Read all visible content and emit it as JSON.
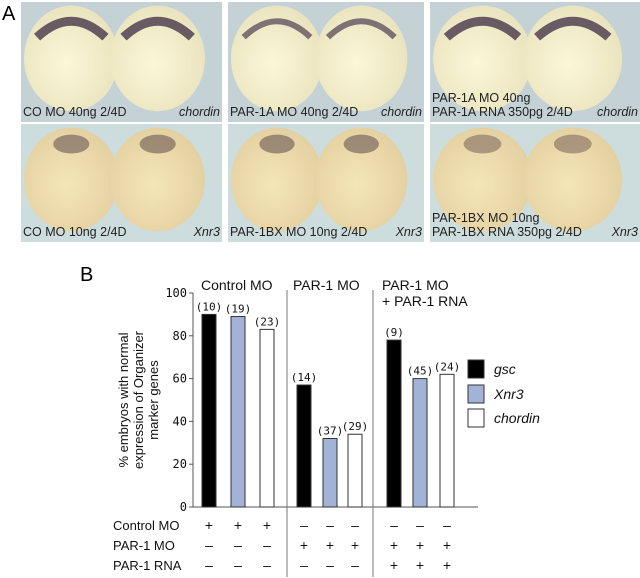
{
  "panel_a": {
    "letter": "A",
    "panels": [
      {
        "label_lines": [
          "CO MO 40ng 2/4D"
        ],
        "marker": "chordin"
      },
      {
        "label_lines": [
          "PAR-1A MO 40ng 2/4D"
        ],
        "marker": "chordin"
      },
      {
        "label_lines": [
          "PAR-1A MO 40ng",
          "PAR-1A RNA 350pg 2/4D"
        ],
        "marker": "chordin"
      },
      {
        "label_lines": [
          "CO MO 10ng 2/4D"
        ],
        "marker": "Xnr3"
      },
      {
        "label_lines": [
          "PAR-1BX MO 10ng 2/4D"
        ],
        "marker": "Xnr3"
      },
      {
        "label_lines": [
          "PAR-1BX MO 10ng",
          "PAR-1BX RNA 350pg 2/4D"
        ],
        "marker": "Xnr3"
      }
    ]
  },
  "panel_b": {
    "letter": "B"
  },
  "chart_data": {
    "type": "bar",
    "ylabel": "% embryos with normal expression of Organizer marker genes",
    "ylabel_lines": [
      "% embryos with normal",
      "expression of Organizer",
      "marker genes"
    ],
    "ylim": [
      0,
      100
    ],
    "yticks": [
      0,
      20,
      40,
      60,
      80,
      100
    ],
    "groups": [
      "Control MO",
      "PAR-1 MO",
      "PAR-1 MO + PAR-1 RNA"
    ],
    "group_label_lines": [
      [
        "Control MO"
      ],
      [
        "PAR-1 MO"
      ],
      [
        "PAR-1 MO",
        "+ PAR-1 RNA"
      ]
    ],
    "series": [
      {
        "name": "gsc",
        "color": "#000000",
        "values": [
          90,
          57,
          78
        ],
        "n": [
          "(10)",
          "(14)",
          "(9)"
        ]
      },
      {
        "name": "Xnr3",
        "color": "#a3b3d8",
        "values": [
          89,
          32,
          60
        ],
        "n": [
          "(19)",
          "(37)",
          "(45)"
        ]
      },
      {
        "name": "chordin",
        "color": "#ffffff",
        "values": [
          83,
          34,
          62
        ],
        "n": [
          "(23)",
          "(29)",
          "(24)"
        ]
      }
    ],
    "legend_position": "right",
    "treatment_rows": [
      {
        "label": "Control MO",
        "signs": [
          "+",
          "+",
          "+",
          "–",
          "–",
          "–",
          "–",
          "–",
          "–"
        ]
      },
      {
        "label": "PAR-1 MO",
        "signs": [
          "–",
          "–",
          "–",
          "+",
          "+",
          "+",
          "+",
          "+",
          "+"
        ]
      },
      {
        "label": "PAR-1 RNA",
        "signs": [
          "–",
          "–",
          "–",
          "–",
          "–",
          "–",
          "+",
          "+",
          "+"
        ]
      }
    ]
  }
}
